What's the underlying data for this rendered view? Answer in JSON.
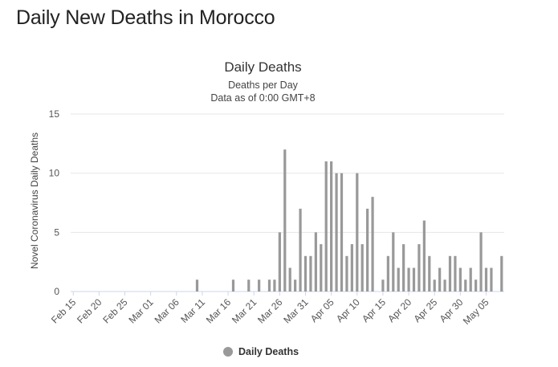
{
  "page": {
    "title": "Daily New Deaths in Morocco"
  },
  "chart_data": {
    "type": "bar",
    "title": "Daily Deaths",
    "subtitle_line1": "Deaths per Day",
    "subtitle_line2": "Data as of 0:00 GMT+8",
    "xlabel": "",
    "ylabel": "Novel Coronavirus Daily Deaths",
    "ylim": [
      0,
      15
    ],
    "yticks": [
      "0",
      "5",
      "10",
      "15"
    ],
    "grid": true,
    "legend_position": "bottom",
    "color": "#999999",
    "x_tick_labels": [
      "Feb 15",
      "Feb 20",
      "Feb 25",
      "Mar 01",
      "Mar 06",
      "Mar 11",
      "Mar 16",
      "Mar 21",
      "Mar 26",
      "Mar 31",
      "Apr 05",
      "Apr 10",
      "Apr 15",
      "Apr 20",
      "Apr 25",
      "Apr 30",
      "May 05"
    ],
    "categories": [
      "Feb 15",
      "Feb 16",
      "Feb 17",
      "Feb 18",
      "Feb 19",
      "Feb 20",
      "Feb 21",
      "Feb 22",
      "Feb 23",
      "Feb 24",
      "Feb 25",
      "Feb 26",
      "Feb 27",
      "Feb 28",
      "Feb 29",
      "Mar 01",
      "Mar 02",
      "Mar 03",
      "Mar 04",
      "Mar 05",
      "Mar 06",
      "Mar 07",
      "Mar 08",
      "Mar 09",
      "Mar 10",
      "Mar 11",
      "Mar 12",
      "Mar 13",
      "Mar 14",
      "Mar 15",
      "Mar 16",
      "Mar 17",
      "Mar 18",
      "Mar 19",
      "Mar 20",
      "Mar 21",
      "Mar 22",
      "Mar 23",
      "Mar 24",
      "Mar 25",
      "Mar 26",
      "Mar 27",
      "Mar 28",
      "Mar 29",
      "Mar 30",
      "Mar 31",
      "Apr 01",
      "Apr 02",
      "Apr 03",
      "Apr 04",
      "Apr 05",
      "Apr 06",
      "Apr 07",
      "Apr 08",
      "Apr 09",
      "Apr 10",
      "Apr 11",
      "Apr 12",
      "Apr 13",
      "Apr 14",
      "Apr 15",
      "Apr 16",
      "Apr 17",
      "Apr 18",
      "Apr 19",
      "Apr 20",
      "Apr 21",
      "Apr 22",
      "Apr 23",
      "Apr 24",
      "Apr 25",
      "Apr 26",
      "Apr 27",
      "Apr 28",
      "Apr 29",
      "Apr 30",
      "May 01",
      "May 02",
      "May 03",
      "May 04",
      "May 05",
      "May 06",
      "May 07",
      "May 08"
    ],
    "series": [
      {
        "name": "Daily Deaths",
        "values": [
          0,
          0,
          0,
          0,
          0,
          0,
          0,
          0,
          0,
          0,
          0,
          0,
          0,
          0,
          0,
          0,
          0,
          0,
          0,
          0,
          0,
          0,
          0,
          0,
          1,
          0,
          0,
          0,
          0,
          0,
          0,
          1,
          0,
          0,
          1,
          0,
          1,
          0,
          1,
          1,
          5,
          12,
          2,
          1,
          7,
          3,
          3,
          5,
          4,
          11,
          11,
          10,
          10,
          3,
          4,
          10,
          4,
          7,
          8,
          0,
          1,
          3,
          5,
          2,
          4,
          2,
          2,
          4,
          6,
          3,
          1,
          2,
          1,
          3,
          3,
          2,
          1,
          2,
          1,
          5,
          2,
          2,
          0,
          3
        ]
      }
    ]
  }
}
